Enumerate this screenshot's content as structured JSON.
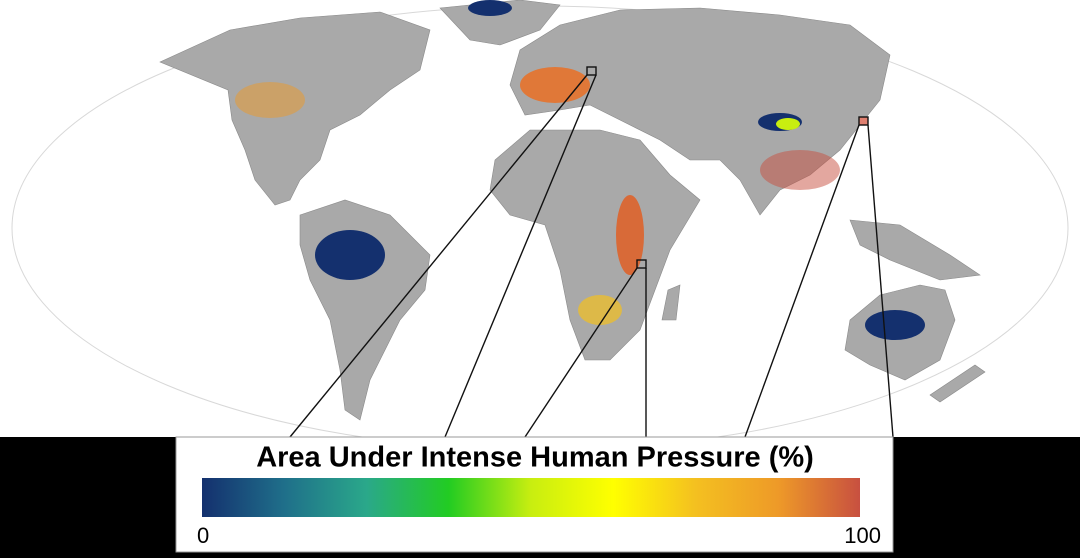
{
  "legend": {
    "title": "Area Under Intense Human Pressure (%)",
    "min": 0,
    "max": 100,
    "colors": [
      "#14306e",
      "#1f6f8a",
      "#2aa88a",
      "#22cc22",
      "#c8ee10",
      "#ffff00",
      "#f4c020",
      "#ee9a28",
      "#c85040"
    ]
  }
}
